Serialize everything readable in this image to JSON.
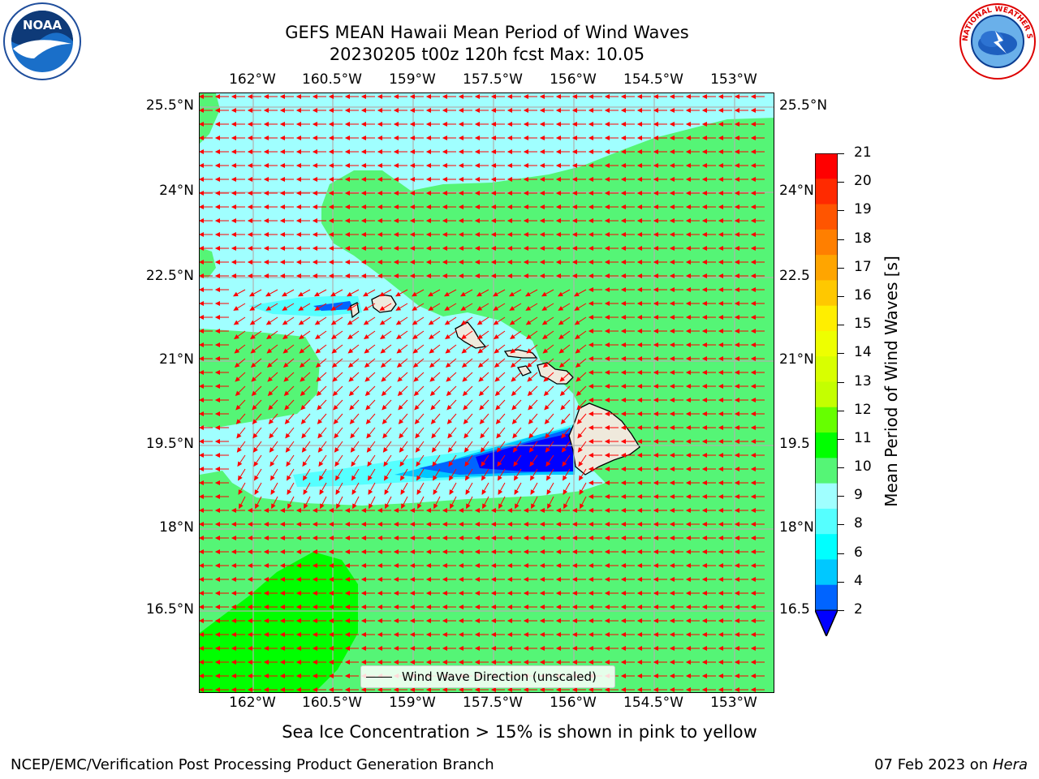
{
  "title": {
    "line1": "GEFS MEAN Hawaii Mean Period of Wind Waves",
    "line2": "20230205 t00z 120h fcst   Max: 10.05"
  },
  "logos": {
    "left": {
      "text": "NOAA",
      "icon": "noaa-logo"
    },
    "right": {
      "icon": "national-weather-service-logo",
      "ring_text": "NATIONAL WEATHER SERVICE"
    }
  },
  "map": {
    "lon_ticks": [
      "162°W",
      "160.5°W",
      "159°W",
      "157.5°W",
      "156°W",
      "154.5°W",
      "153°W"
    ],
    "lat_ticks": [
      "25.5°N",
      "24°N",
      "22.5°N",
      "21°N",
      "19.5°N",
      "18°N",
      "16.5°N"
    ],
    "lat_ticks_right": [
      "25.5°N",
      "24°N",
      "22.5",
      "21°N",
      "19.5",
      "18°N",
      "16.5"
    ],
    "legend_label": "Wind Wave Direction (unscaled)",
    "arrow_color": "#ff0000",
    "land_color": "#efe9dc"
  },
  "colorbar": {
    "label": "Mean Period of Wind Waves [s]",
    "ticks": [
      "21",
      "20",
      "19",
      "18",
      "17",
      "16",
      "15",
      "14",
      "13",
      "12",
      "11",
      "10",
      "9",
      "8",
      "6",
      "4",
      "2"
    ],
    "colors": [
      "#ff0000",
      "#ff2a00",
      "#ff5500",
      "#ff7f00",
      "#ffa500",
      "#ffc800",
      "#ffee00",
      "#eeff00",
      "#d8ff00",
      "#c4ff00",
      "#66ff00",
      "#00ff00",
      "#55f576",
      "#a0ffff",
      "#55ffff",
      "#00ffff",
      "#00c8ff",
      "#0064ff"
    ],
    "extend_color": "#0000ff"
  },
  "notes": {
    "ice": "Sea Ice Concentration > 15% is shown in pink to yellow"
  },
  "footer": {
    "left": "NCEP/EMC/Verification Post Processing Product Generation Branch",
    "date": "07 Feb 2023 on ",
    "host": "Hera"
  }
}
